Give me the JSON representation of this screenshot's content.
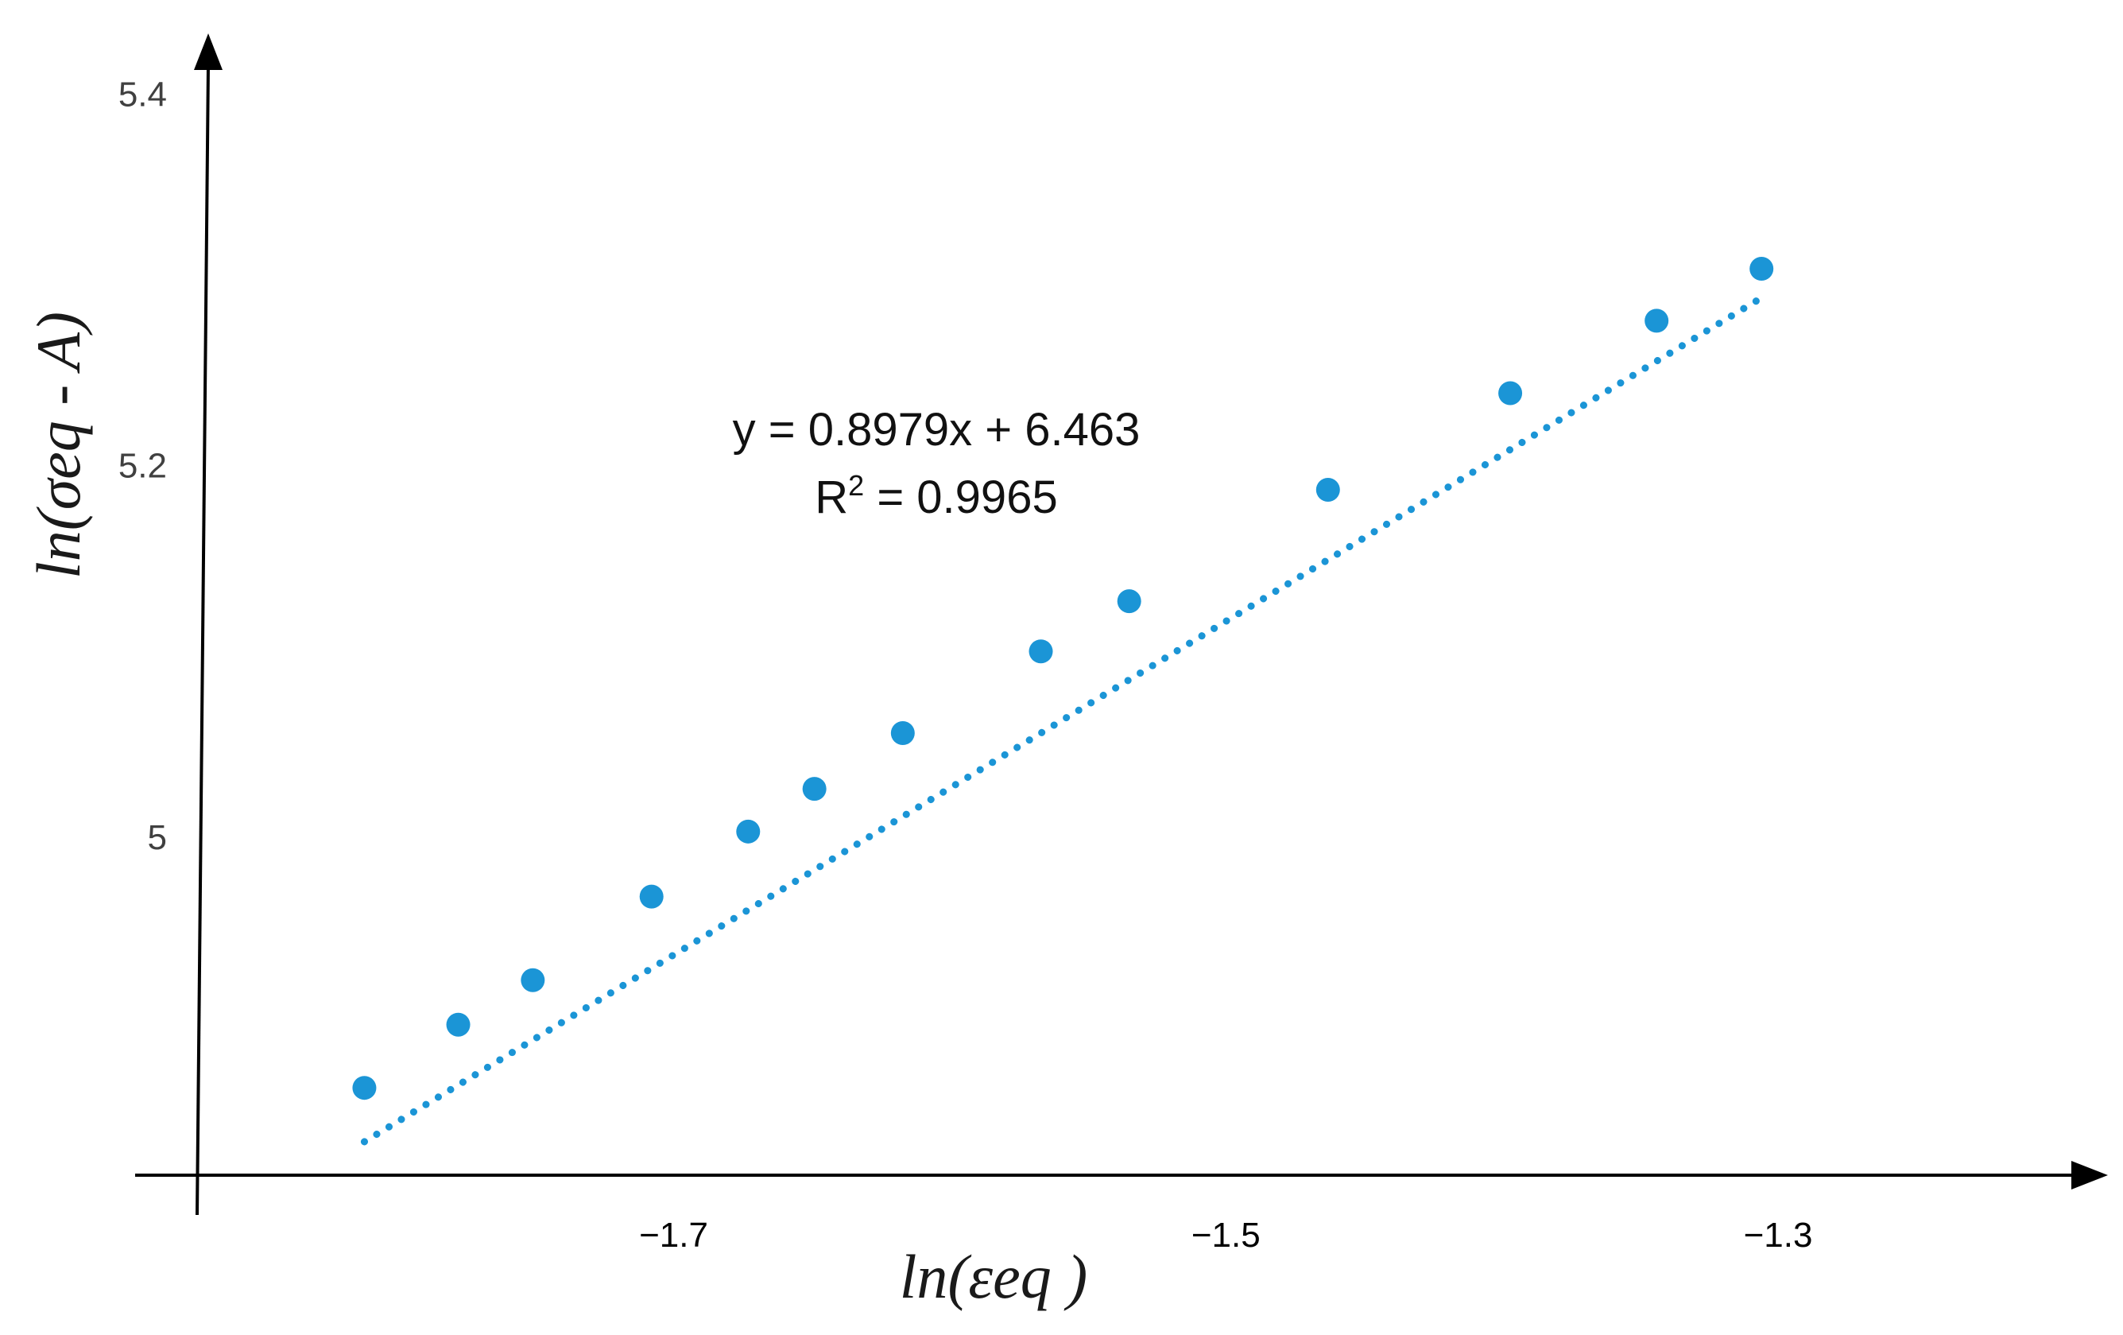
{
  "chart_data": {
    "type": "scatter",
    "title": "",
    "xlabel": "ln(εeq )",
    "ylabel": "ln(σeq - A)",
    "x_ticks": [
      {
        "value": -1.7,
        "label": "−1.7"
      },
      {
        "value": -1.5,
        "label": "−1.5"
      },
      {
        "value": -1.3,
        "label": "−1.3"
      }
    ],
    "y_ticks": [
      {
        "value": 5.0,
        "label": "5"
      },
      {
        "value": 5.2,
        "label": "5.2"
      },
      {
        "value": 5.4,
        "label": "5.4"
      }
    ],
    "xlim": [
      -1.872,
      -1.184
    ],
    "ylim": [
      4.818,
      5.425
    ],
    "grid": false,
    "series": [
      {
        "name": "data",
        "color": "#1b95d6",
        "points": [
          {
            "x": -1.812,
            "y": 4.865
          },
          {
            "x": -1.778,
            "y": 4.899
          },
          {
            "x": -1.751,
            "y": 4.923
          },
          {
            "x": -1.708,
            "y": 4.968
          },
          {
            "x": -1.673,
            "y": 5.003
          },
          {
            "x": -1.649,
            "y": 5.026
          },
          {
            "x": -1.617,
            "y": 5.056
          },
          {
            "x": -1.567,
            "y": 5.1
          },
          {
            "x": -1.535,
            "y": 5.127
          },
          {
            "x": -1.463,
            "y": 5.187
          },
          {
            "x": -1.397,
            "y": 5.239
          },
          {
            "x": -1.344,
            "y": 5.278
          },
          {
            "x": -1.306,
            "y": 5.306
          }
        ]
      }
    ],
    "trendline": {
      "type": "linear",
      "slope": 0.8979,
      "intercept": 6.463,
      "x_range": [
        -1.812,
        -1.306
      ],
      "color": "#1b95d6",
      "style": "dotted"
    },
    "annotations": {
      "equation": "y = 0.8979x + 6.463",
      "r2_prefix": "R",
      "r2_sup": "2",
      "r2_suffix": " = 0.9965"
    }
  }
}
